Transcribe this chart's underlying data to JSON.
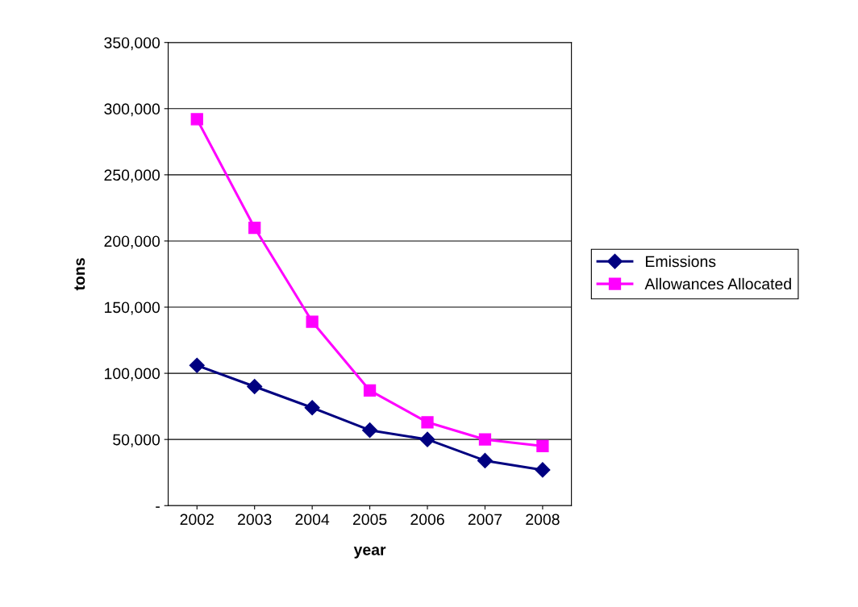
{
  "chart_data": {
    "type": "line",
    "xlabel": "year",
    "ylabel": "tons",
    "categories": [
      "2002",
      "2003",
      "2004",
      "2005",
      "2006",
      "2007",
      "2008"
    ],
    "series": [
      {
        "name": "Emissions",
        "color": "#000080",
        "marker": "diamond",
        "values": [
          106000,
          90000,
          74000,
          57000,
          50000,
          34000,
          27000
        ]
      },
      {
        "name": "Allowances Allocated",
        "color": "#ff00ff",
        "marker": "square",
        "values": [
          292000,
          210000,
          139000,
          87000,
          63000,
          50000,
          45000
        ]
      }
    ],
    "ylim": [
      0,
      350000
    ],
    "yticks": [
      {
        "value": 0,
        "label": "-"
      },
      {
        "value": 50000,
        "label": "50,000"
      },
      {
        "value": 100000,
        "label": "100,000"
      },
      {
        "value": 150000,
        "label": "150,000"
      },
      {
        "value": 200000,
        "label": "200,000"
      },
      {
        "value": 250000,
        "label": "250,000"
      },
      {
        "value": 300000,
        "label": "300,000"
      },
      {
        "value": 350000,
        "label": "350,000"
      }
    ],
    "grid": "y",
    "legend": "right",
    "line_style": "solid"
  }
}
